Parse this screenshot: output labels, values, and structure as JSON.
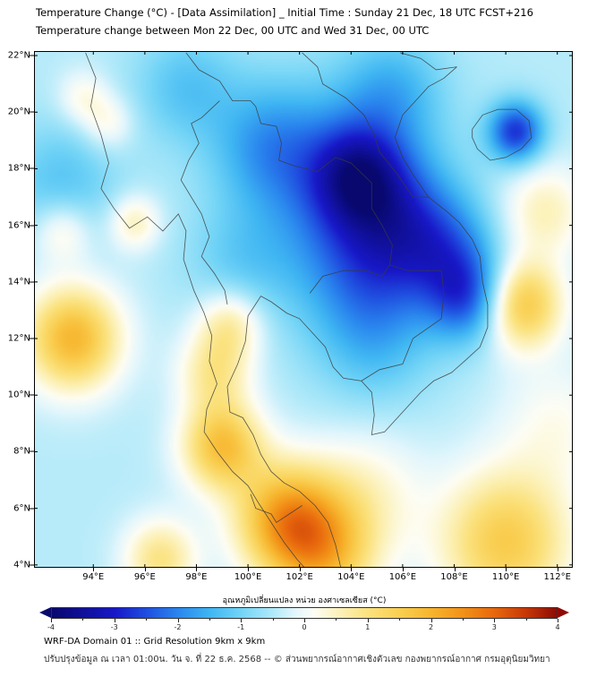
{
  "chart_data": {
    "type": "heatmap",
    "title": "Temperature Change (°C) - [Data Assimilation] _ Initial Time : Sunday 21 Dec, 18 UTC FCST+216",
    "subtitle": "Temperature change between Mon 22 Dec, 00 UTC and Wed 31 Dec, 00 UTC",
    "units": "°C",
    "lon_range": [
      91.7,
      112.6
    ],
    "lat_range": [
      3.9,
      22.16
    ],
    "lon_ticks": [
      {
        "v": 94,
        "label": "94°E"
      },
      {
        "v": 96,
        "label": "96°E"
      },
      {
        "v": 98,
        "label": "98°E"
      },
      {
        "v": 100,
        "label": "100°E"
      },
      {
        "v": 102,
        "label": "102°E"
      },
      {
        "v": 104,
        "label": "104°E"
      },
      {
        "v": 106,
        "label": "106°E"
      },
      {
        "v": 108,
        "label": "108°E"
      },
      {
        "v": 110,
        "label": "110°E"
      },
      {
        "v": 112,
        "label": "112°E"
      }
    ],
    "lat_ticks": [
      {
        "v": 22,
        "label": "22°N"
      },
      {
        "v": 20,
        "label": "20°N"
      },
      {
        "v": 18,
        "label": "18°N"
      },
      {
        "v": 16,
        "label": "16°N"
      },
      {
        "v": 14,
        "label": "14°N"
      },
      {
        "v": 12,
        "label": "12°N"
      },
      {
        "v": 10,
        "label": "10°N"
      },
      {
        "v": 8,
        "label": "8°N"
      },
      {
        "v": 6,
        "label": "6°N"
      },
      {
        "v": 4,
        "label": "4°N"
      }
    ],
    "colorbar": {
      "label": "อุณหภูมิเปลี่ยนแปลง หน่วย องศาเซลเซียส (°C)",
      "min": -4,
      "max": 4,
      "tick_values": [
        -4,
        -3,
        -2,
        -1,
        0,
        1,
        2,
        3,
        4
      ],
      "tick_labels": [
        "-4",
        "-3",
        "-2",
        "-1",
        "0",
        "1",
        "2",
        "3",
        "4"
      ],
      "minor_step": 0.5,
      "stops": [
        [
          -4,
          "#08086e"
        ],
        [
          -3.5,
          "#10109b"
        ],
        [
          -3,
          "#1818c8"
        ],
        [
          -2.5,
          "#1f4fe0"
        ],
        [
          -2,
          "#2a86ee"
        ],
        [
          -1.5,
          "#3fb6f2"
        ],
        [
          -1,
          "#72d4f6"
        ],
        [
          -0.5,
          "#b0e9f9"
        ],
        [
          -0.15,
          "#e2f6fc"
        ],
        [
          0.15,
          "#fdfdf4"
        ],
        [
          0.5,
          "#fcf3c0"
        ],
        [
          1,
          "#fbe27e"
        ],
        [
          1.5,
          "#f9cf52"
        ],
        [
          2,
          "#f7b52e"
        ],
        [
          2.5,
          "#f29218"
        ],
        [
          3,
          "#e8680d"
        ],
        [
          3.5,
          "#c83807"
        ],
        [
          4,
          "#8e0b04"
        ]
      ]
    },
    "field": {
      "base": -0.45,
      "blobs": [
        [
          104.3,
          17.8,
          -2.0,
          1.3
        ],
        [
          103.5,
          17.0,
          -1.3,
          2.6
        ],
        [
          106.2,
          16.0,
          -1.2,
          1.6
        ],
        [
          104.8,
          14.3,
          -1.0,
          1.8
        ],
        [
          100.8,
          18.9,
          -1.0,
          1.5
        ],
        [
          105.6,
          20.8,
          -0.9,
          1.4
        ],
        [
          108.6,
          13.4,
          -1.8,
          1.1
        ],
        [
          107.9,
          15.0,
          -1.0,
          1.3
        ],
        [
          110.4,
          19.3,
          -2.3,
          0.75
        ],
        [
          97.6,
          20.9,
          -0.8,
          1.4
        ],
        [
          104.9,
          11.8,
          -0.7,
          1.6
        ],
        [
          92.8,
          17.5,
          -0.8,
          1.5
        ],
        [
          99.6,
          14.6,
          -0.5,
          1.4
        ],
        [
          93.2,
          12.0,
          2.4,
          1.3
        ],
        [
          99.0,
          8.2,
          2.2,
          1.1
        ],
        [
          98.7,
          10.8,
          1.2,
          1.0
        ],
        [
          99.3,
          12.5,
          1.2,
          0.9
        ],
        [
          101.5,
          5.6,
          2.6,
          1.4
        ],
        [
          103.0,
          4.3,
          1.8,
          1.4
        ],
        [
          96.6,
          4.2,
          1.4,
          1.0
        ],
        [
          110.0,
          4.8,
          2.0,
          1.8
        ],
        [
          110.6,
          13.2,
          2.2,
          1.1
        ],
        [
          111.5,
          16.5,
          1.0,
          1.2
        ],
        [
          95.6,
          16.1,
          1.0,
          0.7
        ],
        [
          94.6,
          19.6,
          0.7,
          0.7
        ],
        [
          93.6,
          20.5,
          0.7,
          0.7
        ],
        [
          92.8,
          15.8,
          0.9,
          0.8
        ],
        [
          104.5,
          6.5,
          0.8,
          1.6
        ],
        [
          112.0,
          9.0,
          0.6,
          1.6
        ]
      ]
    },
    "coastlines": [
      {
        "name": "coast-west-myanmar-peninsula",
        "pts": [
          [
            93.7,
            22.1
          ],
          [
            94.1,
            21.2
          ],
          [
            93.9,
            20.2
          ],
          [
            94.3,
            19.2
          ],
          [
            94.6,
            18.2
          ],
          [
            94.3,
            17.3
          ],
          [
            94.8,
            16.6
          ],
          [
            95.4,
            15.9
          ],
          [
            96.1,
            16.3
          ],
          [
            96.7,
            15.8
          ],
          [
            97.3,
            16.4
          ],
          [
            97.6,
            15.8
          ],
          [
            97.5,
            14.8
          ],
          [
            97.9,
            13.7
          ],
          [
            98.3,
            12.9
          ],
          [
            98.6,
            12.1
          ],
          [
            98.5,
            11.2
          ],
          [
            98.8,
            10.4
          ],
          [
            98.4,
            9.5
          ],
          [
            98.3,
            8.7
          ],
          [
            98.8,
            8.0
          ],
          [
            99.4,
            7.3
          ],
          [
            100.0,
            6.8
          ],
          [
            100.4,
            6.2
          ],
          [
            100.9,
            5.5
          ],
          [
            101.4,
            4.8
          ],
          [
            101.9,
            4.2
          ],
          [
            102.2,
            3.9
          ]
        ]
      },
      {
        "name": "coast-gulf-and-vietnam",
        "pts": [
          [
            103.6,
            3.9
          ],
          [
            103.4,
            4.7
          ],
          [
            103.1,
            5.5
          ],
          [
            102.6,
            6.1
          ],
          [
            102.0,
            6.6
          ],
          [
            101.4,
            6.9
          ],
          [
            100.9,
            7.3
          ],
          [
            100.5,
            7.9
          ],
          [
            100.2,
            8.6
          ],
          [
            99.8,
            9.2
          ],
          [
            99.3,
            9.4
          ],
          [
            99.2,
            10.3
          ],
          [
            99.6,
            11.1
          ],
          [
            99.9,
            11.9
          ],
          [
            100.0,
            12.8
          ],
          [
            100.5,
            13.5
          ],
          [
            100.9,
            13.3
          ],
          [
            101.5,
            12.9
          ],
          [
            102.0,
            12.7
          ],
          [
            102.6,
            12.1
          ],
          [
            103.0,
            11.7
          ],
          [
            103.3,
            11.0
          ],
          [
            103.7,
            10.6
          ],
          [
            104.4,
            10.5
          ],
          [
            104.8,
            10.1
          ],
          [
            104.9,
            9.3
          ],
          [
            104.8,
            8.6
          ],
          [
            105.3,
            8.7
          ],
          [
            106.1,
            9.5
          ],
          [
            106.7,
            10.1
          ],
          [
            107.2,
            10.5
          ],
          [
            107.9,
            10.8
          ],
          [
            108.4,
            11.2
          ],
          [
            109.0,
            11.7
          ],
          [
            109.3,
            12.4
          ],
          [
            109.3,
            13.2
          ],
          [
            109.1,
            14.0
          ],
          [
            109.0,
            14.9
          ],
          [
            108.7,
            15.5
          ],
          [
            108.2,
            16.1
          ],
          [
            107.7,
            16.5
          ],
          [
            107.0,
            17.0
          ],
          [
            106.4,
            17.8
          ],
          [
            106.0,
            18.4
          ],
          [
            105.7,
            19.1
          ],
          [
            106.0,
            19.9
          ],
          [
            106.6,
            20.5
          ],
          [
            107.0,
            20.9
          ],
          [
            107.6,
            21.2
          ],
          [
            108.1,
            21.6
          ]
        ]
      },
      {
        "name": "coast-hainan",
        "pts": [
          [
            108.7,
            19.4
          ],
          [
            109.1,
            19.9
          ],
          [
            109.7,
            20.1
          ],
          [
            110.4,
            20.1
          ],
          [
            110.9,
            19.7
          ],
          [
            111.0,
            19.1
          ],
          [
            110.6,
            18.7
          ],
          [
            110.0,
            18.4
          ],
          [
            109.4,
            18.3
          ],
          [
            108.9,
            18.7
          ],
          [
            108.7,
            19.1
          ],
          [
            108.7,
            19.4
          ]
        ]
      },
      {
        "name": "border-myanmar-thailand",
        "pts": [
          [
            98.9,
            20.4
          ],
          [
            98.2,
            19.8
          ],
          [
            97.8,
            19.6
          ],
          [
            98.1,
            18.9
          ],
          [
            97.7,
            18.3
          ],
          [
            97.4,
            17.6
          ],
          [
            97.8,
            17.0
          ],
          [
            98.2,
            16.4
          ],
          [
            98.5,
            15.6
          ],
          [
            98.2,
            14.9
          ],
          [
            98.7,
            14.3
          ],
          [
            99.1,
            13.7
          ],
          [
            99.2,
            13.2
          ]
        ]
      },
      {
        "name": "border-golden-triangle",
        "pts": [
          [
            97.6,
            22.1
          ],
          [
            98.1,
            21.5
          ],
          [
            98.9,
            21.1
          ],
          [
            99.4,
            20.4
          ],
          [
            100.1,
            20.4
          ],
          [
            100.3,
            20.2
          ]
        ]
      },
      {
        "name": "border-thailand-laos",
        "pts": [
          [
            100.3,
            20.2
          ],
          [
            100.5,
            19.6
          ],
          [
            101.1,
            19.5
          ],
          [
            101.3,
            18.9
          ],
          [
            101.2,
            18.3
          ],
          [
            101.8,
            18.1
          ],
          [
            102.7,
            17.9
          ],
          [
            103.4,
            18.4
          ],
          [
            104.0,
            18.2
          ],
          [
            104.8,
            17.5
          ],
          [
            104.8,
            16.6
          ],
          [
            105.2,
            16.0
          ],
          [
            105.6,
            15.3
          ],
          [
            105.5,
            14.6
          ]
        ]
      },
      {
        "name": "border-thailand-cambodia",
        "pts": [
          [
            102.4,
            13.6
          ],
          [
            102.9,
            14.2
          ],
          [
            103.7,
            14.4
          ],
          [
            104.6,
            14.4
          ],
          [
            105.2,
            14.2
          ],
          [
            105.5,
            14.6
          ]
        ]
      },
      {
        "name": "border-laos-vietnam",
        "pts": [
          [
            102.1,
            22.1
          ],
          [
            102.7,
            21.6
          ],
          [
            102.9,
            21.0
          ],
          [
            103.8,
            20.5
          ],
          [
            104.5,
            19.9
          ],
          [
            104.9,
            19.2
          ],
          [
            105.1,
            18.6
          ],
          [
            105.8,
            17.8
          ],
          [
            106.4,
            17.0
          ],
          [
            107.0,
            17.0
          ]
        ]
      },
      {
        "name": "border-vietnam-china",
        "pts": [
          [
            105.9,
            22.1
          ],
          [
            106.7,
            21.9
          ],
          [
            107.3,
            21.5
          ],
          [
            108.1,
            21.6
          ]
        ]
      },
      {
        "name": "border-cambodia-laos",
        "pts": [
          [
            105.5,
            14.6
          ],
          [
            106.2,
            14.4
          ],
          [
            107.0,
            14.4
          ],
          [
            107.5,
            14.4
          ]
        ]
      },
      {
        "name": "border-cambodia-vietnam",
        "pts": [
          [
            107.5,
            14.4
          ],
          [
            107.6,
            13.6
          ],
          [
            107.5,
            12.7
          ],
          [
            106.4,
            12.0
          ],
          [
            106.0,
            11.1
          ],
          [
            105.1,
            10.9
          ],
          [
            104.4,
            10.5
          ]
        ]
      },
      {
        "name": "border-thailand-malaysia",
        "pts": [
          [
            100.1,
            6.5
          ],
          [
            100.3,
            6.0
          ],
          [
            100.9,
            5.8
          ],
          [
            101.1,
            5.5
          ],
          [
            101.6,
            5.8
          ],
          [
            102.1,
            6.1
          ]
        ]
      }
    ]
  },
  "footer": {
    "line1": "WRF-DA Domain 01 :: Grid Resolution 9km x 9km",
    "line2": "ปรับปรุงข้อมูล ณ เวลา 01:00น. วัน จ. ที่ 22 ธ.ค. 2568 -- © ส่วนพยากรณ์อากาศเชิงตัวเลข กองพยากรณ์อากาศ กรมอุตุนิยมวิทยา"
  }
}
